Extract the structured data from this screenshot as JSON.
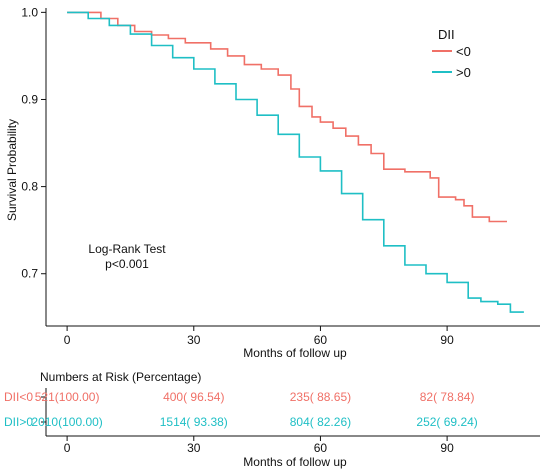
{
  "colors": {
    "dii_lt0": "#f07067",
    "dii_gt0": "#1fbfc5",
    "axis": "#111111"
  },
  "chart_data": {
    "type": "line",
    "subtype": "kaplan-meier-survival",
    "xlabel": "Months of follow up",
    "ylabel": "Survival Probability",
    "xlim": [
      -5,
      112
    ],
    "ylim": [
      0.64,
      1.005
    ],
    "xticks": [
      0,
      30,
      60,
      90
    ],
    "yticks": [
      0.7,
      0.8,
      0.9,
      1.0
    ],
    "ytick_labels": [
      "0.7",
      "0.8",
      "0.9",
      "1.0"
    ],
    "grid": false,
    "legend": {
      "title": "DII",
      "position": "top-right",
      "entries": [
        "<0",
        ">0"
      ]
    },
    "annotation": [
      "Log-Rank Test",
      "p<0.001"
    ],
    "series": [
      {
        "name": "<0",
        "color": "#f07067",
        "x": [
          0,
          8,
          12,
          16,
          20,
          24,
          28,
          34,
          38,
          42,
          46,
          50,
          53,
          55,
          58,
          60,
          63,
          66,
          69,
          72,
          75,
          80,
          86,
          88,
          92,
          94,
          96,
          100,
          104
        ],
        "y": [
          1.0,
          0.993,
          0.985,
          0.978,
          0.974,
          0.97,
          0.965,
          0.958,
          0.95,
          0.94,
          0.935,
          0.928,
          0.912,
          0.892,
          0.88,
          0.874,
          0.867,
          0.858,
          0.848,
          0.838,
          0.82,
          0.817,
          0.81,
          0.788,
          0.785,
          0.778,
          0.765,
          0.76,
          0.759
        ]
      },
      {
        "name": ">0",
        "color": "#1fbfc5",
        "x": [
          0,
          5,
          10,
          15,
          20,
          25,
          30,
          35,
          40,
          45,
          50,
          55,
          60,
          65,
          70,
          75,
          80,
          85,
          90,
          95,
          98,
          102,
          105,
          108
        ],
        "y": [
          1.0,
          0.993,
          0.985,
          0.975,
          0.962,
          0.948,
          0.935,
          0.918,
          0.9,
          0.882,
          0.86,
          0.834,
          0.818,
          0.792,
          0.762,
          0.732,
          0.71,
          0.7,
          0.69,
          0.672,
          0.668,
          0.665,
          0.656,
          0.655
        ]
      }
    ],
    "risk_table": {
      "title": "Numbers at Risk (Percentage)",
      "xlabel": "Months of follow up",
      "xticks": [
        0,
        30,
        60,
        90
      ],
      "rows": [
        {
          "label": "DII<0",
          "color": "#f07067",
          "values": [
            "521(100.00)",
            "400( 96.54)",
            "235( 88.65)",
            "82( 78.84)"
          ]
        },
        {
          "label": "DII>0",
          "color": "#1fbfc5",
          "values": [
            "2010(100.00)",
            "1514( 93.38)",
            "804( 82.26)",
            "252( 69.24)"
          ]
        }
      ]
    }
  }
}
